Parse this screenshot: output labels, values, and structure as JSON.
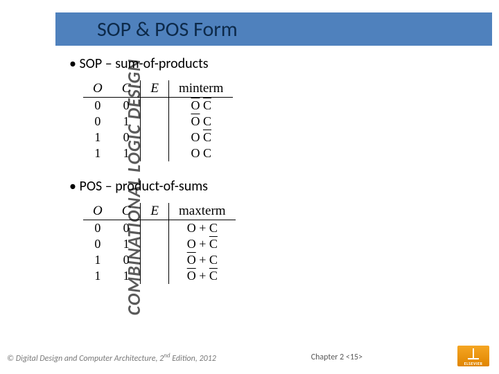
{
  "sidebar": {
    "text": "COMBINATIONAL LOGIC DESIGN"
  },
  "title": "SOP & POS Form",
  "sop": {
    "bullet": "SOP – sum-of-products",
    "headers": {
      "a": "O",
      "b": "C",
      "out": "E",
      "term": "minterm"
    },
    "rows": [
      {
        "a": "0",
        "b": "0",
        "term_parts": [
          {
            "t": "O",
            "bar": true
          },
          {
            "t": " "
          },
          {
            "t": "C",
            "bar": true
          }
        ]
      },
      {
        "a": "0",
        "b": "1",
        "term_parts": [
          {
            "t": "O",
            "bar": true
          },
          {
            "t": " "
          },
          {
            "t": "C",
            "bar": false
          }
        ]
      },
      {
        "a": "1",
        "b": "0",
        "term_parts": [
          {
            "t": "O",
            "bar": false
          },
          {
            "t": " "
          },
          {
            "t": "C",
            "bar": true
          }
        ]
      },
      {
        "a": "1",
        "b": "1",
        "term_parts": [
          {
            "t": "O",
            "bar": false
          },
          {
            "t": " "
          },
          {
            "t": "C",
            "bar": false
          }
        ]
      }
    ]
  },
  "pos": {
    "bullet": "POS – product-of-sums",
    "headers": {
      "a": "O",
      "b": "C",
      "out": "E",
      "term": "maxterm"
    },
    "rows": [
      {
        "a": "0",
        "b": "0",
        "term_parts": [
          {
            "t": "O",
            "bar": false
          },
          {
            "t": " + "
          },
          {
            "t": "C",
            "bar": false
          }
        ]
      },
      {
        "a": "0",
        "b": "1",
        "term_parts": [
          {
            "t": "O",
            "bar": false
          },
          {
            "t": " + "
          },
          {
            "t": "C",
            "bar": true
          }
        ]
      },
      {
        "a": "1",
        "b": "0",
        "term_parts": [
          {
            "t": "O",
            "bar": true
          },
          {
            "t": " + "
          },
          {
            "t": "C",
            "bar": false
          }
        ]
      },
      {
        "a": "1",
        "b": "1",
        "term_parts": [
          {
            "t": "O",
            "bar": true
          },
          {
            "t": " + "
          },
          {
            "t": "C",
            "bar": true
          }
        ]
      }
    ]
  },
  "footer": {
    "copyright_prefix": "© ",
    "copyright_title": "Digital Design and Computer Architecture",
    "copyright_suffix": ", 2",
    "copyright_sup": "nd",
    "copyright_tail": " Edition, 2012",
    "chapter": "Chapter 2 <15>",
    "publisher": "ELSEVIER"
  },
  "colors": {
    "title_bg": "#4f81bd",
    "title_fg": "#0d2a4a",
    "sidebar_fg": "#5a5a5a",
    "footer_fg": "#7a7a7a"
  }
}
